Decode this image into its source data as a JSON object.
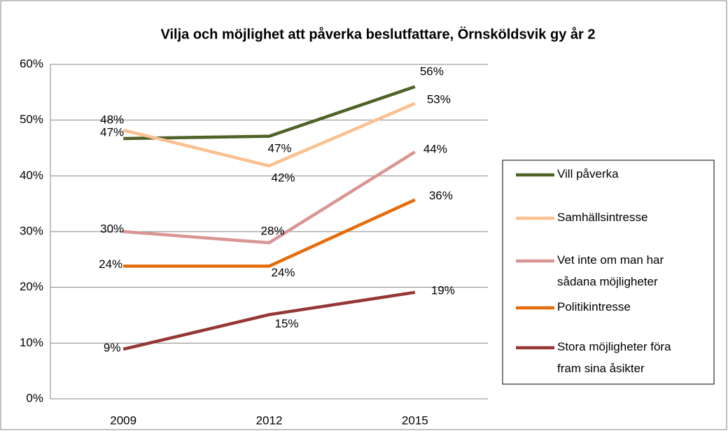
{
  "chart_data": {
    "type": "line",
    "title": "Vilja och möjlighet att påverka beslutfattare, Örnsköldsvik gy år 2",
    "categories": [
      "2009",
      "2012",
      "2015"
    ],
    "series": [
      {
        "name": "Vill påverka",
        "color": "#4f6228",
        "values": [
          46.7,
          47.1,
          56
        ],
        "value_labels": [
          "47%",
          "47%",
          "56%"
        ]
      },
      {
        "name": "Samhällsintresse",
        "color": "#fac090",
        "values": [
          48.2,
          41.8,
          53
        ],
        "value_labels": [
          "48%",
          "42%",
          "53%"
        ]
      },
      {
        "name": "Vet inte om man har sådana möjligheter",
        "color": "#d99694",
        "values": [
          30,
          28,
          44.3
        ],
        "value_labels": [
          "30%",
          "28%",
          "44%"
        ]
      },
      {
        "name": "Politikintresse",
        "color": "#e46c0a",
        "values": [
          23.8,
          23.8,
          35.7
        ],
        "value_labels": [
          "24%",
          "24%",
          "36%"
        ]
      },
      {
        "name": "Stora möjligheter föra fram sina åsikter",
        "color": "#953735",
        "values": [
          8.9,
          15.1,
          19.1
        ],
        "value_labels": [
          "9%",
          "15%",
          "19%"
        ]
      }
    ],
    "ylim": [
      0,
      60
    ],
    "yticks": [
      {
        "value": 0,
        "label": "0%"
      },
      {
        "value": 10,
        "label": "10%"
      },
      {
        "value": 20,
        "label": "20%"
      },
      {
        "value": 30,
        "label": "30%"
      },
      {
        "value": 40,
        "label": "40%"
      },
      {
        "value": 50,
        "label": "50%"
      },
      {
        "value": 60,
        "label": "60%"
      }
    ],
    "grid": true,
    "legend": "right"
  }
}
